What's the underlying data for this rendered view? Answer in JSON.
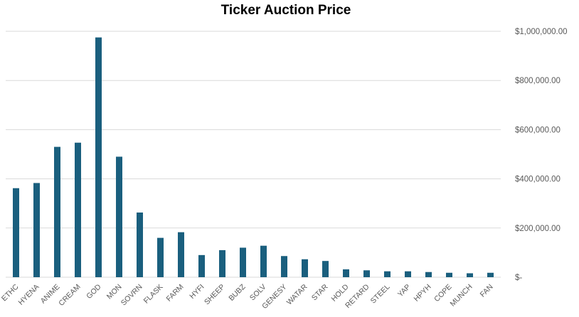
{
  "chart_data": {
    "type": "bar",
    "title": "Ticker Auction Price",
    "xlabel": "",
    "ylabel": "",
    "categories": [
      "ETHC",
      "HYENA",
      "ANIME",
      "CREAM",
      "GOD",
      "MON",
      "SOVRN",
      "FLASK",
      "FARM",
      "HYFI",
      "SHEEP",
      "BUBZ",
      "SOLV",
      "GENESY",
      "WATAR",
      "STAR",
      "HOLD",
      "RETARD",
      "STEEL",
      "YAP",
      "HPYH",
      "COPE",
      "MUNCH",
      "FAN"
    ],
    "values": [
      362000,
      383000,
      530000,
      547000,
      975000,
      490000,
      263000,
      160000,
      183000,
      90000,
      110000,
      120000,
      128000,
      86000,
      73000,
      66000,
      32000,
      28000,
      24000,
      24000,
      21000,
      18000,
      16000,
      18000
    ],
    "ylim": [
      0,
      1000000
    ],
    "yticks": [
      0,
      200000,
      400000,
      600000,
      800000,
      1000000
    ],
    "ytick_labels": [
      "$-",
      "$200,000.00",
      "$400,000.00",
      "$600,000.00",
      "$800,000.00",
      "$1,000,000.00"
    ],
    "y_axis_side": "right",
    "grid": true,
    "legend": "none",
    "bar_color": "#1a5f7e",
    "grid_color": "#d9d9d9",
    "text_color": "#595959"
  }
}
